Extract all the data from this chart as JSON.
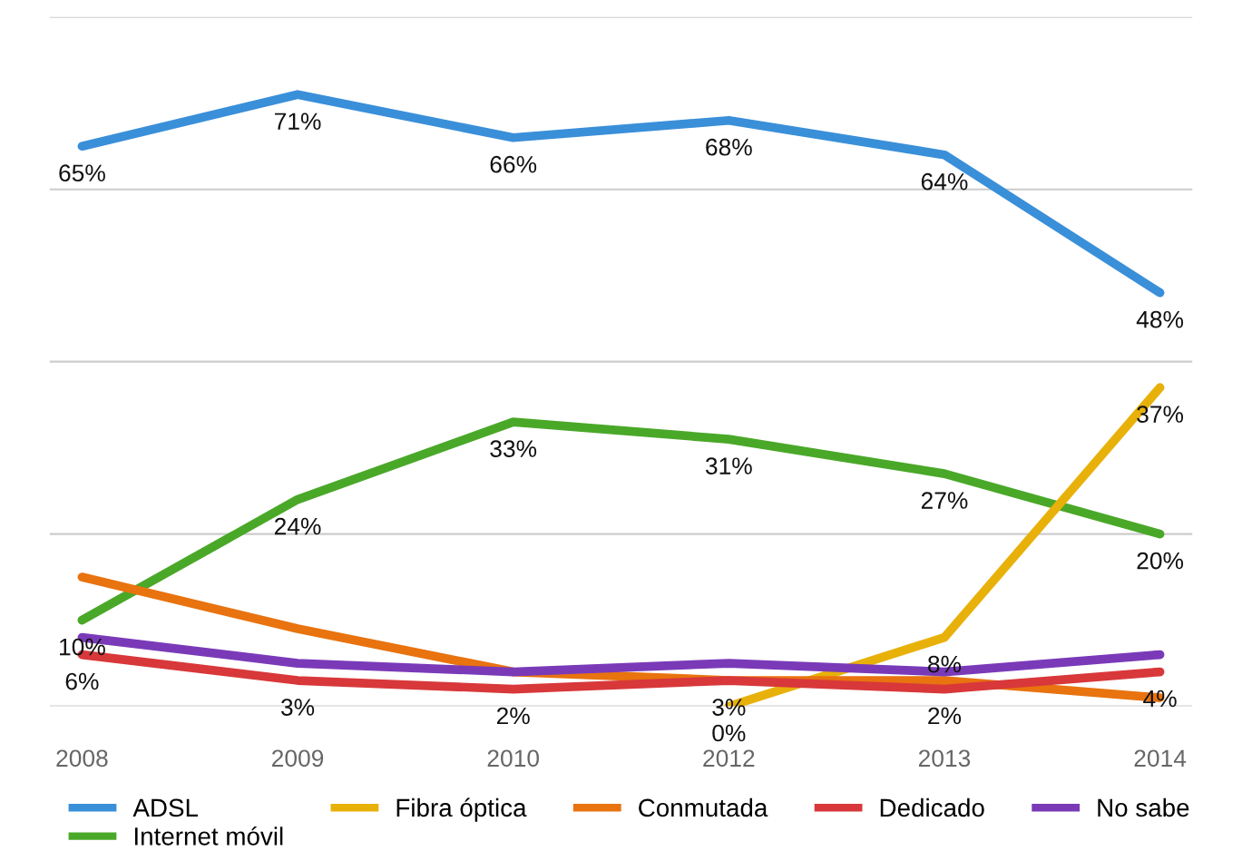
{
  "chart_data": {
    "type": "line",
    "categories": [
      "2008",
      "2009",
      "2010",
      "2012",
      "2013",
      "2014"
    ],
    "series": [
      {
        "name": "ADSL",
        "color": "#3a8fd9",
        "values": [
          65,
          71,
          66,
          68,
          64,
          48
        ],
        "value_labels": [
          "65%",
          "71%",
          "66%",
          "68%",
          "64%",
          "48%"
        ]
      },
      {
        "name": "Internet móvil",
        "color": "#4aa829",
        "values": [
          10,
          24,
          33,
          31,
          27,
          20
        ],
        "value_labels": [
          "10%",
          "24%",
          "33%",
          "31%",
          "27%",
          "20%"
        ]
      },
      {
        "name": "Fibra óptica",
        "color": "#e8b10a",
        "values": [
          null,
          null,
          null,
          0,
          8,
          37
        ],
        "value_labels": [
          null,
          null,
          null,
          "0%",
          "8%",
          "37%"
        ]
      },
      {
        "name": "Conmutada",
        "color": "#e8730f",
        "values": [
          15,
          9,
          4,
          3,
          3,
          1
        ]
      },
      {
        "name": "Dedicado",
        "color": "#d8383a",
        "values": [
          6,
          3,
          2,
          3,
          2,
          4
        ],
        "value_labels": [
          "6%",
          "3%",
          "2%",
          "3%",
          "2%",
          "4%"
        ]
      },
      {
        "name": "No sabe",
        "color": "#7a3ab8",
        "values": [
          8,
          5,
          4,
          5,
          4,
          6
        ]
      }
    ],
    "ylim": [
      0,
      80
    ],
    "yticks": [
      {
        "value": 0,
        "label": null
      },
      {
        "value": 20,
        "label": null
      },
      {
        "value": 40,
        "label": null
      },
      {
        "value": 60,
        "label": null
      },
      {
        "value": 80,
        "label": null
      }
    ],
    "grid": "y",
    "legend": "bottom",
    "marker": "none",
    "line_style": "solid",
    "tick_labels": "x"
  }
}
